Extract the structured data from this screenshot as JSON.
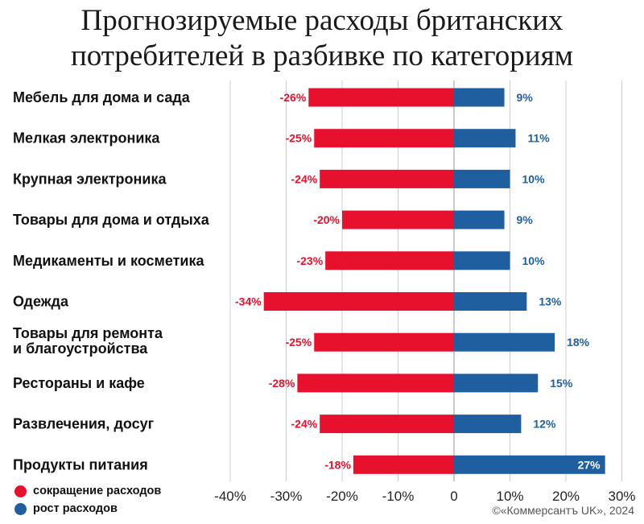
{
  "title_lines": [
    "Прогнозируемые расходы британских",
    "потребителей в разбивке по категориям"
  ],
  "legend": {
    "decrease_label": "сокращение расходов",
    "increase_label": "рост расходов"
  },
  "source": "©«Коммерсантъ UK», 2024",
  "colors": {
    "decrease": "#e8112d",
    "increase": "#1f5fa0",
    "grid": "#cccccc"
  },
  "chart_data": {
    "type": "bar",
    "orientation": "horizontal",
    "title": "Прогнозируемые расходы британских потребителей в разбивке по категориям",
    "categories": [
      [
        "Мебель для дома и сада"
      ],
      [
        "Мелкая электроника"
      ],
      [
        "Крупная электроника"
      ],
      [
        "Товары для дома и отдыха"
      ],
      [
        "Медикаменты и косметика"
      ],
      [
        "Одежда"
      ],
      [
        "Товары для ремонта",
        "и благоустройства"
      ],
      [
        "Рестораны и кафе"
      ],
      [
        "Развлечения, досуг"
      ],
      [
        "Продукты питания"
      ]
    ],
    "series": [
      {
        "name": "сокращение расходов",
        "values": [
          -26,
          -25,
          -24,
          -20,
          -23,
          -34,
          -25,
          -28,
          -24,
          -18
        ],
        "labels": [
          "-26%",
          "-25%",
          "-24%",
          "-20%",
          "-23%",
          "-34%",
          "-25%",
          "-28%",
          "-24%",
          "-18%"
        ]
      },
      {
        "name": "рост расходов",
        "values": [
          9,
          11,
          10,
          9,
          10,
          13,
          18,
          15,
          12,
          27
        ],
        "labels": [
          "9%",
          "11%",
          "10%",
          "9%",
          "10%",
          "13%",
          "18%",
          "15%",
          "12%",
          "27%"
        ]
      }
    ],
    "xlim": [
      -40,
      30
    ],
    "xticks": [
      -40,
      -30,
      -20,
      -10,
      0,
      10,
      20,
      30
    ],
    "xtick_labels": [
      "-40%",
      "-30%",
      "-20%",
      "-10%",
      "0",
      "10%",
      "20%",
      "30%"
    ],
    "grid": true,
    "legend_position": "bottom-left"
  }
}
